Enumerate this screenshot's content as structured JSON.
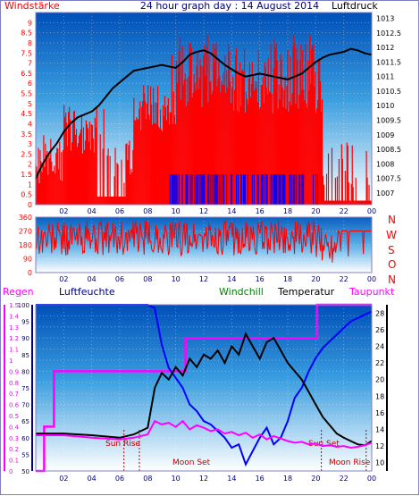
{
  "header": {
    "title": "24 hour graph day : 14 August 2014",
    "left_label": "Windstärke",
    "right_label": "Luftdruck"
  },
  "direction_labels": [
    "N",
    "W",
    "S",
    "O",
    "N"
  ],
  "lower_labels": {
    "regen": "Regen",
    "luftfeuchte": "Luftfeuchte",
    "windchill": "Windchill",
    "temperatur": "Temperatur",
    "taupunkt": "Taupunkt"
  },
  "events": {
    "sun_rise": "Sun Rise",
    "moon_set_1": "Moon Set",
    "sun_set": "Sun Set",
    "moon_rise": "Moon Rise"
  },
  "colors": {
    "red": "#ff0000",
    "blue": "#0000ff",
    "magenta": "#ff00ff",
    "black": "#000000",
    "green": "#008000",
    "navy": "#000080",
    "dark_red": "#c00000",
    "border": "#8080c0"
  },
  "chart_data": [
    {
      "type": "bar",
      "id": "wind",
      "title": "24 hour graph day : 14 August 2014",
      "x_ticks": [
        "02",
        "04",
        "06",
        "08",
        "10",
        "12",
        "14",
        "16",
        "18",
        "20",
        "22",
        "00"
      ],
      "xlim": [
        0,
        24
      ],
      "y_left_label": "Windstärke",
      "y_left_ticks": [
        "0",
        "0.5",
        "1",
        "1.5",
        "2",
        "2.5",
        "3",
        "3.5",
        "4",
        "4.5",
        "5",
        "5.5",
        "6",
        "6.5",
        "7",
        "7.5",
        "8",
        "8.5",
        "9"
      ],
      "ylim_left": [
        0,
        9.5
      ],
      "y_right_label": "Luftdruck",
      "y_right_ticks": [
        "1007",
        "1007.5",
        "1008",
        "1008.5",
        "1009",
        "1009.5",
        "1010",
        "1010.5",
        "1011",
        "1011.5",
        "1012",
        "1012.5",
        "1013"
      ],
      "ylim_right": [
        1006.6,
        1013.2
      ],
      "series": [
        {
          "name": "Luftdruck",
          "type": "line",
          "x": [
            0,
            0.5,
            1,
            1.5,
            2,
            2.5,
            3,
            3.5,
            4,
            4.5,
            5,
            5.5,
            6,
            6.5,
            7,
            7.5,
            8,
            8.5,
            9,
            9.5,
            10,
            10.5,
            11,
            11.5,
            12,
            12.5,
            13,
            13.5,
            14,
            14.5,
            15,
            15.5,
            16,
            16.5,
            17,
            17.5,
            18,
            18.5,
            19,
            19.5,
            20,
            20.5,
            21,
            21.5,
            22,
            22.5,
            23,
            23.5,
            24
          ],
          "y": [
            1007.5,
            1008,
            1008.4,
            1008.7,
            1009.1,
            1009.4,
            1009.6,
            1009.7,
            1009.8,
            1010.0,
            1010.3,
            1010.6,
            1010.8,
            1011.0,
            1011.2,
            1011.25,
            1011.3,
            1011.35,
            1011.4,
            1011.35,
            1011.3,
            1011.5,
            1011.75,
            1011.85,
            1011.9,
            1011.8,
            1011.6,
            1011.4,
            1011.25,
            1011.1,
            1011.0,
            1011.05,
            1011.1,
            1011.05,
            1011.0,
            1010.95,
            1010.9,
            1011.0,
            1011.1,
            1011.3,
            1011.5,
            1011.65,
            1011.75,
            1011.8,
            1011.85,
            1011.95,
            1011.9,
            1011.8,
            1011.75
          ]
        }
      ]
    },
    {
      "type": "line",
      "id": "direction",
      "x_ticks": [
        "02",
        "04",
        "06",
        "08",
        "10",
        "12",
        "14",
        "16",
        "18",
        "20",
        "22",
        "00"
      ],
      "xlim": [
        0,
        24
      ],
      "y_ticks": [
        "0",
        "90",
        "180",
        "270",
        "360"
      ],
      "ylim": [
        0,
        360
      ]
    },
    {
      "type": "line",
      "id": "weather",
      "x_ticks": [
        "02",
        "04",
        "06",
        "08",
        "10",
        "12",
        "14",
        "16",
        "18",
        "20",
        "22",
        "00"
      ],
      "xlim": [
        0,
        24
      ],
      "regen_ticks": [
        "0",
        "0.1",
        "0.2",
        "0.3",
        "0.4",
        "0.5",
        "0.6",
        "0.7",
        "0.8",
        "0.9",
        "1",
        "1.1",
        "1.2",
        "1.3",
        "1.4",
        "1.5"
      ],
      "regen_range": [
        0,
        1.5
      ],
      "luftfeuchte_ticks": [
        "50",
        "55",
        "60",
        "65",
        "70",
        "75",
        "80",
        "85",
        "90",
        "95",
        "100"
      ],
      "luftfeuchte_range": [
        50,
        100
      ],
      "temp_ticks": [
        "10",
        "12",
        "14",
        "16",
        "18",
        "20",
        "22",
        "24",
        "26",
        "28"
      ],
      "temp_range": [
        9,
        29
      ],
      "series": [
        {
          "name": "Regen",
          "x": [
            0,
            0.6,
            0.6,
            1.3,
            1.3,
            10.7,
            10.7,
            20.1,
            20.1,
            24
          ],
          "y": [
            0,
            0,
            0.4,
            0.4,
            0.9,
            0.9,
            1.2,
            1.2,
            1.5,
            1.5
          ]
        },
        {
          "name": "Luftfeuchte",
          "x": [
            0,
            2,
            4,
            6,
            7,
            8,
            8.5,
            9,
            9.5,
            10,
            10.5,
            11,
            11.5,
            12,
            12.5,
            13,
            13.5,
            14,
            14.5,
            15,
            15.5,
            16,
            16.5,
            17,
            17.5,
            18,
            18.5,
            19,
            19.5,
            20,
            20.5,
            21,
            21.5,
            22,
            22.5,
            23,
            23.5,
            24
          ],
          "y": [
            100,
            100,
            100,
            100,
            100,
            100,
            99,
            88,
            81,
            78,
            75,
            70,
            68,
            65,
            64,
            62,
            60,
            57,
            58,
            52,
            56,
            60,
            63,
            58,
            60,
            65,
            72,
            75,
            80,
            84,
            87,
            89,
            91,
            93,
            95,
            96,
            97,
            98
          ]
        },
        {
          "name": "Temperatur",
          "x": [
            0,
            2,
            4,
            6,
            7,
            8,
            8.5,
            9,
            9.5,
            10,
            10.5,
            11,
            11.5,
            12,
            12.5,
            13,
            13.5,
            14,
            14.5,
            15,
            15.5,
            16,
            16.5,
            17,
            17.5,
            18,
            18.5,
            19,
            19.5,
            20,
            20.5,
            21,
            21.5,
            22,
            22.5,
            23,
            23.5,
            24
          ],
          "y": [
            13.5,
            13.5,
            13.3,
            13.0,
            13.4,
            14.2,
            19.0,
            20.8,
            20.0,
            21.5,
            20.5,
            22.5,
            21.5,
            23.0,
            22.5,
            23.5,
            22.0,
            24.0,
            23.0,
            25.5,
            24.0,
            22.5,
            24.5,
            25.0,
            23.5,
            22.0,
            21.0,
            20.0,
            18.5,
            17.0,
            15.5,
            14.5,
            13.5,
            13.0,
            12.6,
            12.2,
            12.1,
            12.6
          ]
        },
        {
          "name": "Taupunkt",
          "x": [
            0,
            2,
            4,
            6,
            7,
            8,
            8.5,
            9,
            9.5,
            10,
            10.5,
            11,
            11.5,
            12,
            12.5,
            13,
            13.5,
            14,
            14.5,
            15,
            15.5,
            16,
            16.5,
            17,
            17.5,
            18,
            18.5,
            19,
            19.5,
            20,
            20.5,
            21,
            21.5,
            22,
            22.5,
            23,
            23.5,
            24
          ],
          "y": [
            13.3,
            13.3,
            13.0,
            12.8,
            13.0,
            13.4,
            15.0,
            14.6,
            14.8,
            14.3,
            15.0,
            14.0,
            14.5,
            14.2,
            13.8,
            14.0,
            13.5,
            13.7,
            13.3,
            13.6,
            13.0,
            13.4,
            12.8,
            13.2,
            12.9,
            12.6,
            12.4,
            12.5,
            12.2,
            12.3,
            12.0,
            12.1,
            11.9,
            12.0,
            11.8,
            11.9,
            12.1,
            12.4
          ]
        }
      ]
    }
  ]
}
